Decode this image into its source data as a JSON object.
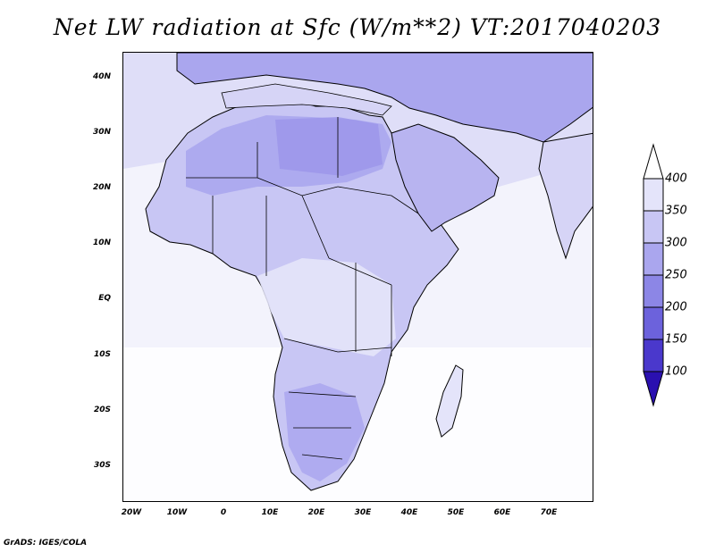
{
  "title": "Net LW radiation at Sfc (W/m**2) VT:2017040203",
  "footer": "GrADS: IGES/COLA",
  "lat_labels": [
    "40N",
    "30N",
    "20N",
    "10N",
    "EQ",
    "10S",
    "20S",
    "30S"
  ],
  "lon_labels": [
    "20W",
    "10W",
    "0",
    "10E",
    "20E",
    "30E",
    "40E",
    "50E",
    "60E",
    "70E"
  ],
  "colorbar": {
    "levels": [
      "400",
      "350",
      "300",
      "250",
      "200",
      "150",
      "100"
    ],
    "colors": [
      "#ffffff",
      "#e4e4fa",
      "#c8c6f4",
      "#aaa6ee",
      "#8c86e6",
      "#6c62dc",
      "#4a38cc",
      "#2a10b0"
    ]
  },
  "colors": {
    "land_low": "#d6d4f6",
    "land_mid": "#b8b4f0",
    "land_high": "#9c96ea",
    "ocean": "#f3f3fc",
    "border": "#000000"
  }
}
